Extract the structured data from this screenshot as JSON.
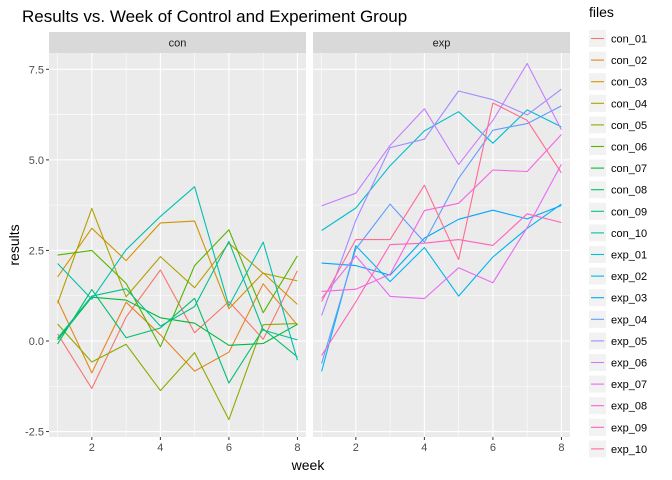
{
  "chart_data": {
    "type": "line",
    "title": "Results vs. Week of Control and Experiment Group",
    "xlabel": "week",
    "ylabel": "results",
    "xlim": [
      0.75,
      8.25
    ],
    "ylim": [
      -2.65,
      7.95
    ],
    "x_ticks": [
      2,
      4,
      6,
      8
    ],
    "y_ticks": [
      -2.5,
      0.0,
      2.5,
      5.0,
      7.5
    ],
    "y_tick_labels": [
      "-2.5",
      "0.0",
      "2.5",
      "5.0",
      "7.5"
    ],
    "grid": true,
    "facets": [
      "con",
      "exp"
    ],
    "legend": {
      "title": "files",
      "position": "right"
    },
    "x": [
      1,
      2,
      3,
      4,
      5,
      6,
      7,
      8
    ],
    "series": [
      {
        "name": "con_01",
        "facet": "con",
        "color": "#F8766D",
        "values": [
          0.2,
          -1.31,
          0.66,
          1.96,
          0.23,
          1.09,
          0.05,
          1.94
        ]
      },
      {
        "name": "con_02",
        "facet": "con",
        "color": "#E7851E",
        "values": [
          1.13,
          -0.88,
          1.07,
          0.17,
          -0.83,
          -0.31,
          1.58,
          0.44
        ]
      },
      {
        "name": "con_03",
        "facet": "con",
        "color": "#D09400",
        "values": [
          1.77,
          3.11,
          2.22,
          3.26,
          3.31,
          0.89,
          1.88,
          1.01
        ]
      },
      {
        "name": "con_04",
        "facet": "con",
        "color": "#B2A100",
        "values": [
          1.04,
          3.66,
          1.22,
          2.33,
          1.47,
          2.7,
          1.87,
          1.66
        ]
      },
      {
        "name": "con_05",
        "facet": "con",
        "color": "#8BAB00",
        "values": [
          0.47,
          -0.58,
          -0.09,
          -1.37,
          -0.32,
          -2.17,
          0.45,
          0.48
        ]
      },
      {
        "name": "con_06",
        "facet": "con",
        "color": "#55B400",
        "values": [
          2.37,
          2.5,
          1.59,
          -0.16,
          2.08,
          3.07,
          0.78,
          2.35
        ]
      },
      {
        "name": "con_07",
        "facet": "con",
        "color": "#00BA38",
        "values": [
          0.03,
          1.21,
          1.13,
          0.64,
          0.49,
          -0.12,
          -0.07,
          0.46
        ]
      },
      {
        "name": "con_08",
        "facet": "con",
        "color": "#00BE6C",
        "values": [
          -0.08,
          1.42,
          0.09,
          0.36,
          1.18,
          -1.16,
          0.33,
          -0.44
        ]
      },
      {
        "name": "con_09",
        "facet": "con",
        "color": "#00C08E",
        "values": [
          0.08,
          1.24,
          1.44,
          0.41,
          0.95,
          2.75,
          0.3,
          0.03
        ]
      },
      {
        "name": "con_10",
        "facet": "con",
        "color": "#00C0AF",
        "values": [
          2.14,
          1.15,
          2.52,
          3.44,
          4.26,
          0.97,
          2.73,
          -0.53
        ]
      },
      {
        "name": "exp_01",
        "facet": "exp",
        "color": "#00BDD0",
        "values": [
          3.05,
          3.67,
          4.84,
          5.8,
          6.33,
          5.46,
          6.38,
          5.91
        ]
      },
      {
        "name": "exp_02",
        "facet": "exp",
        "color": "#00B5EE",
        "values": [
          -0.84,
          2.63,
          1.64,
          2.58,
          1.24,
          2.32,
          3.11,
          3.78
        ]
      },
      {
        "name": "exp_03",
        "facet": "exp",
        "color": "#00A5FF",
        "values": [
          2.15,
          2.08,
          1.82,
          2.84,
          3.36,
          3.61,
          3.37,
          3.74
        ]
      },
      {
        "name": "exp_04",
        "facet": "exp",
        "color": "#619CFF",
        "values": [
          -0.62,
          2.54,
          3.78,
          2.73,
          4.49,
          5.82,
          6.0,
          6.49
        ]
      },
      {
        "name": "exp_05",
        "facet": "exp",
        "color": "#9F8CFF",
        "values": [
          0.7,
          3.33,
          5.34,
          5.57,
          6.9,
          6.66,
          6.24,
          6.95
        ]
      },
      {
        "name": "exp_06",
        "facet": "exp",
        "color": "#C77CFF",
        "values": [
          3.73,
          4.08,
          5.4,
          6.41,
          4.87,
          6.09,
          7.66,
          5.83
        ]
      },
      {
        "name": "exp_07",
        "facet": "exp",
        "color": "#E76BF3",
        "values": [
          1.18,
          2.35,
          1.23,
          1.17,
          2.02,
          1.61,
          3.13,
          4.88
        ]
      },
      {
        "name": "exp_08",
        "facet": "exp",
        "color": "#F863DF",
        "values": [
          1.37,
          1.43,
          1.84,
          3.6,
          3.8,
          4.72,
          4.68,
          5.7
        ]
      },
      {
        "name": "exp_09",
        "facet": "exp",
        "color": "#FF62BC",
        "values": [
          -0.4,
          1.08,
          2.66,
          2.7,
          2.8,
          2.64,
          3.51,
          3.27
        ]
      },
      {
        "name": "exp_10",
        "facet": "exp",
        "color": "#FF6C91",
        "values": [
          1.09,
          2.8,
          2.8,
          4.3,
          2.25,
          6.57,
          6.09,
          4.64
        ]
      }
    ]
  }
}
